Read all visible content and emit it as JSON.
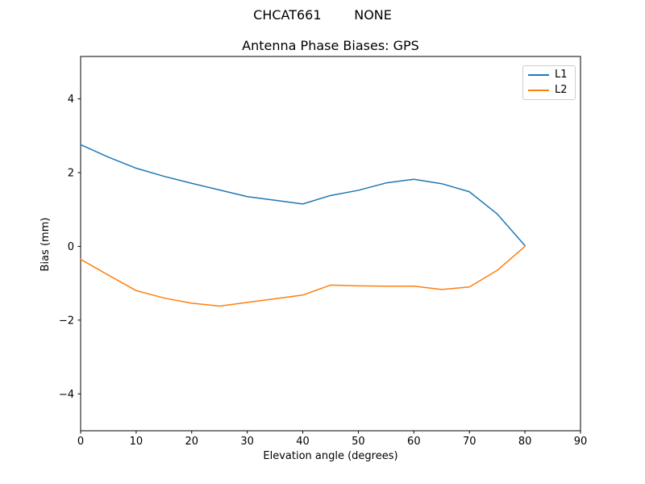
{
  "figure": {
    "background": "#ffffff"
  },
  "chart_data": {
    "type": "line",
    "suptitle": "CHCAT661        NONE",
    "title": "Antenna Phase Biases: GPS",
    "xlabel": "Elevation angle (degrees)",
    "ylabel": "Bias (mm)",
    "xlim": [
      0,
      90
    ],
    "ylim": [
      -5,
      5.15
    ],
    "xticks": [
      0,
      10,
      20,
      30,
      40,
      50,
      60,
      70,
      80,
      90
    ],
    "xtick_labels": [
      "0",
      "10",
      "20",
      "30",
      "40",
      "50",
      "60",
      "70",
      "80",
      "90"
    ],
    "yticks": [
      -4,
      -2,
      0,
      2,
      4
    ],
    "ytick_labels": [
      "−4",
      "−2",
      "0",
      "2",
      "4"
    ],
    "grid": false,
    "spine_color": "#000000",
    "legend": {
      "position": "upper right",
      "border_color": "#cccccc",
      "entries": [
        "L1",
        "L2"
      ]
    },
    "x": [
      0,
      5,
      10,
      15,
      20,
      25,
      30,
      35,
      40,
      45,
      50,
      55,
      60,
      65,
      70,
      75,
      80
    ],
    "series": [
      {
        "name": "L1",
        "color": "#1f77b4",
        "values": [
          2.76,
          2.42,
          2.12,
          1.9,
          1.71,
          1.53,
          1.35,
          1.25,
          1.15,
          1.38,
          1.52,
          1.72,
          1.82,
          1.7,
          1.48,
          0.88,
          0.02
        ]
      },
      {
        "name": "L2",
        "color": "#ff7f0e",
        "values": [
          -0.35,
          -0.78,
          -1.2,
          -1.4,
          -1.54,
          -1.62,
          -1.52,
          -1.42,
          -1.32,
          -1.05,
          -1.07,
          -1.08,
          -1.08,
          -1.17,
          -1.1,
          -0.65,
          0.0
        ]
      }
    ]
  }
}
